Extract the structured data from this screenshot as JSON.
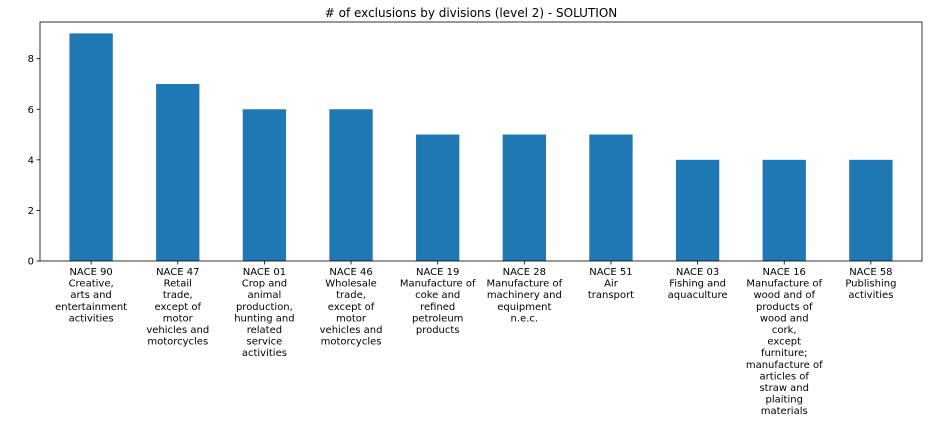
{
  "chart_data": {
    "type": "bar",
    "title": "# of exclusions by divisions (level 2) - SOLUTION",
    "xlabel": "",
    "ylabel": "",
    "ylim": [
      0,
      9.45
    ],
    "yticks": [
      0,
      2,
      4,
      6,
      8
    ],
    "grid": false,
    "bar_color": "#1f77b4",
    "categories": [
      "NACE 90\nCreative,\narts and\nentertainment\nactivities",
      "NACE 47\nRetail\ntrade,\nexcept of\nmotor\nvehicles and\nmotorcycles",
      "NACE 01\nCrop and\nanimal\nproduction,\nhunting and\nrelated\nservice\nactivities",
      "NACE 46\nWholesale\ntrade,\nexcept of\nmotor\nvehicles and\nmotorcycles",
      "NACE 19\nManufacture of\ncoke and\nrefined\npetroleum\nproducts",
      "NACE 28\nManufacture of\nmachinery and\nequipment\nn.e.c.",
      "NACE 51\nAir\ntransport",
      "NACE 03\nFishing and\naquaculture",
      "NACE 16\nManufacture of\nwood and of\nproducts of\nwood and\ncork,\nexcept\nfurniture;\nmanufacture of\narticles of\nstraw and\nplaiting\nmaterials",
      "NACE 58\nPublishing\nactivities"
    ],
    "values": [
      9,
      7,
      6,
      6,
      5,
      5,
      5,
      4,
      4,
      4
    ]
  }
}
